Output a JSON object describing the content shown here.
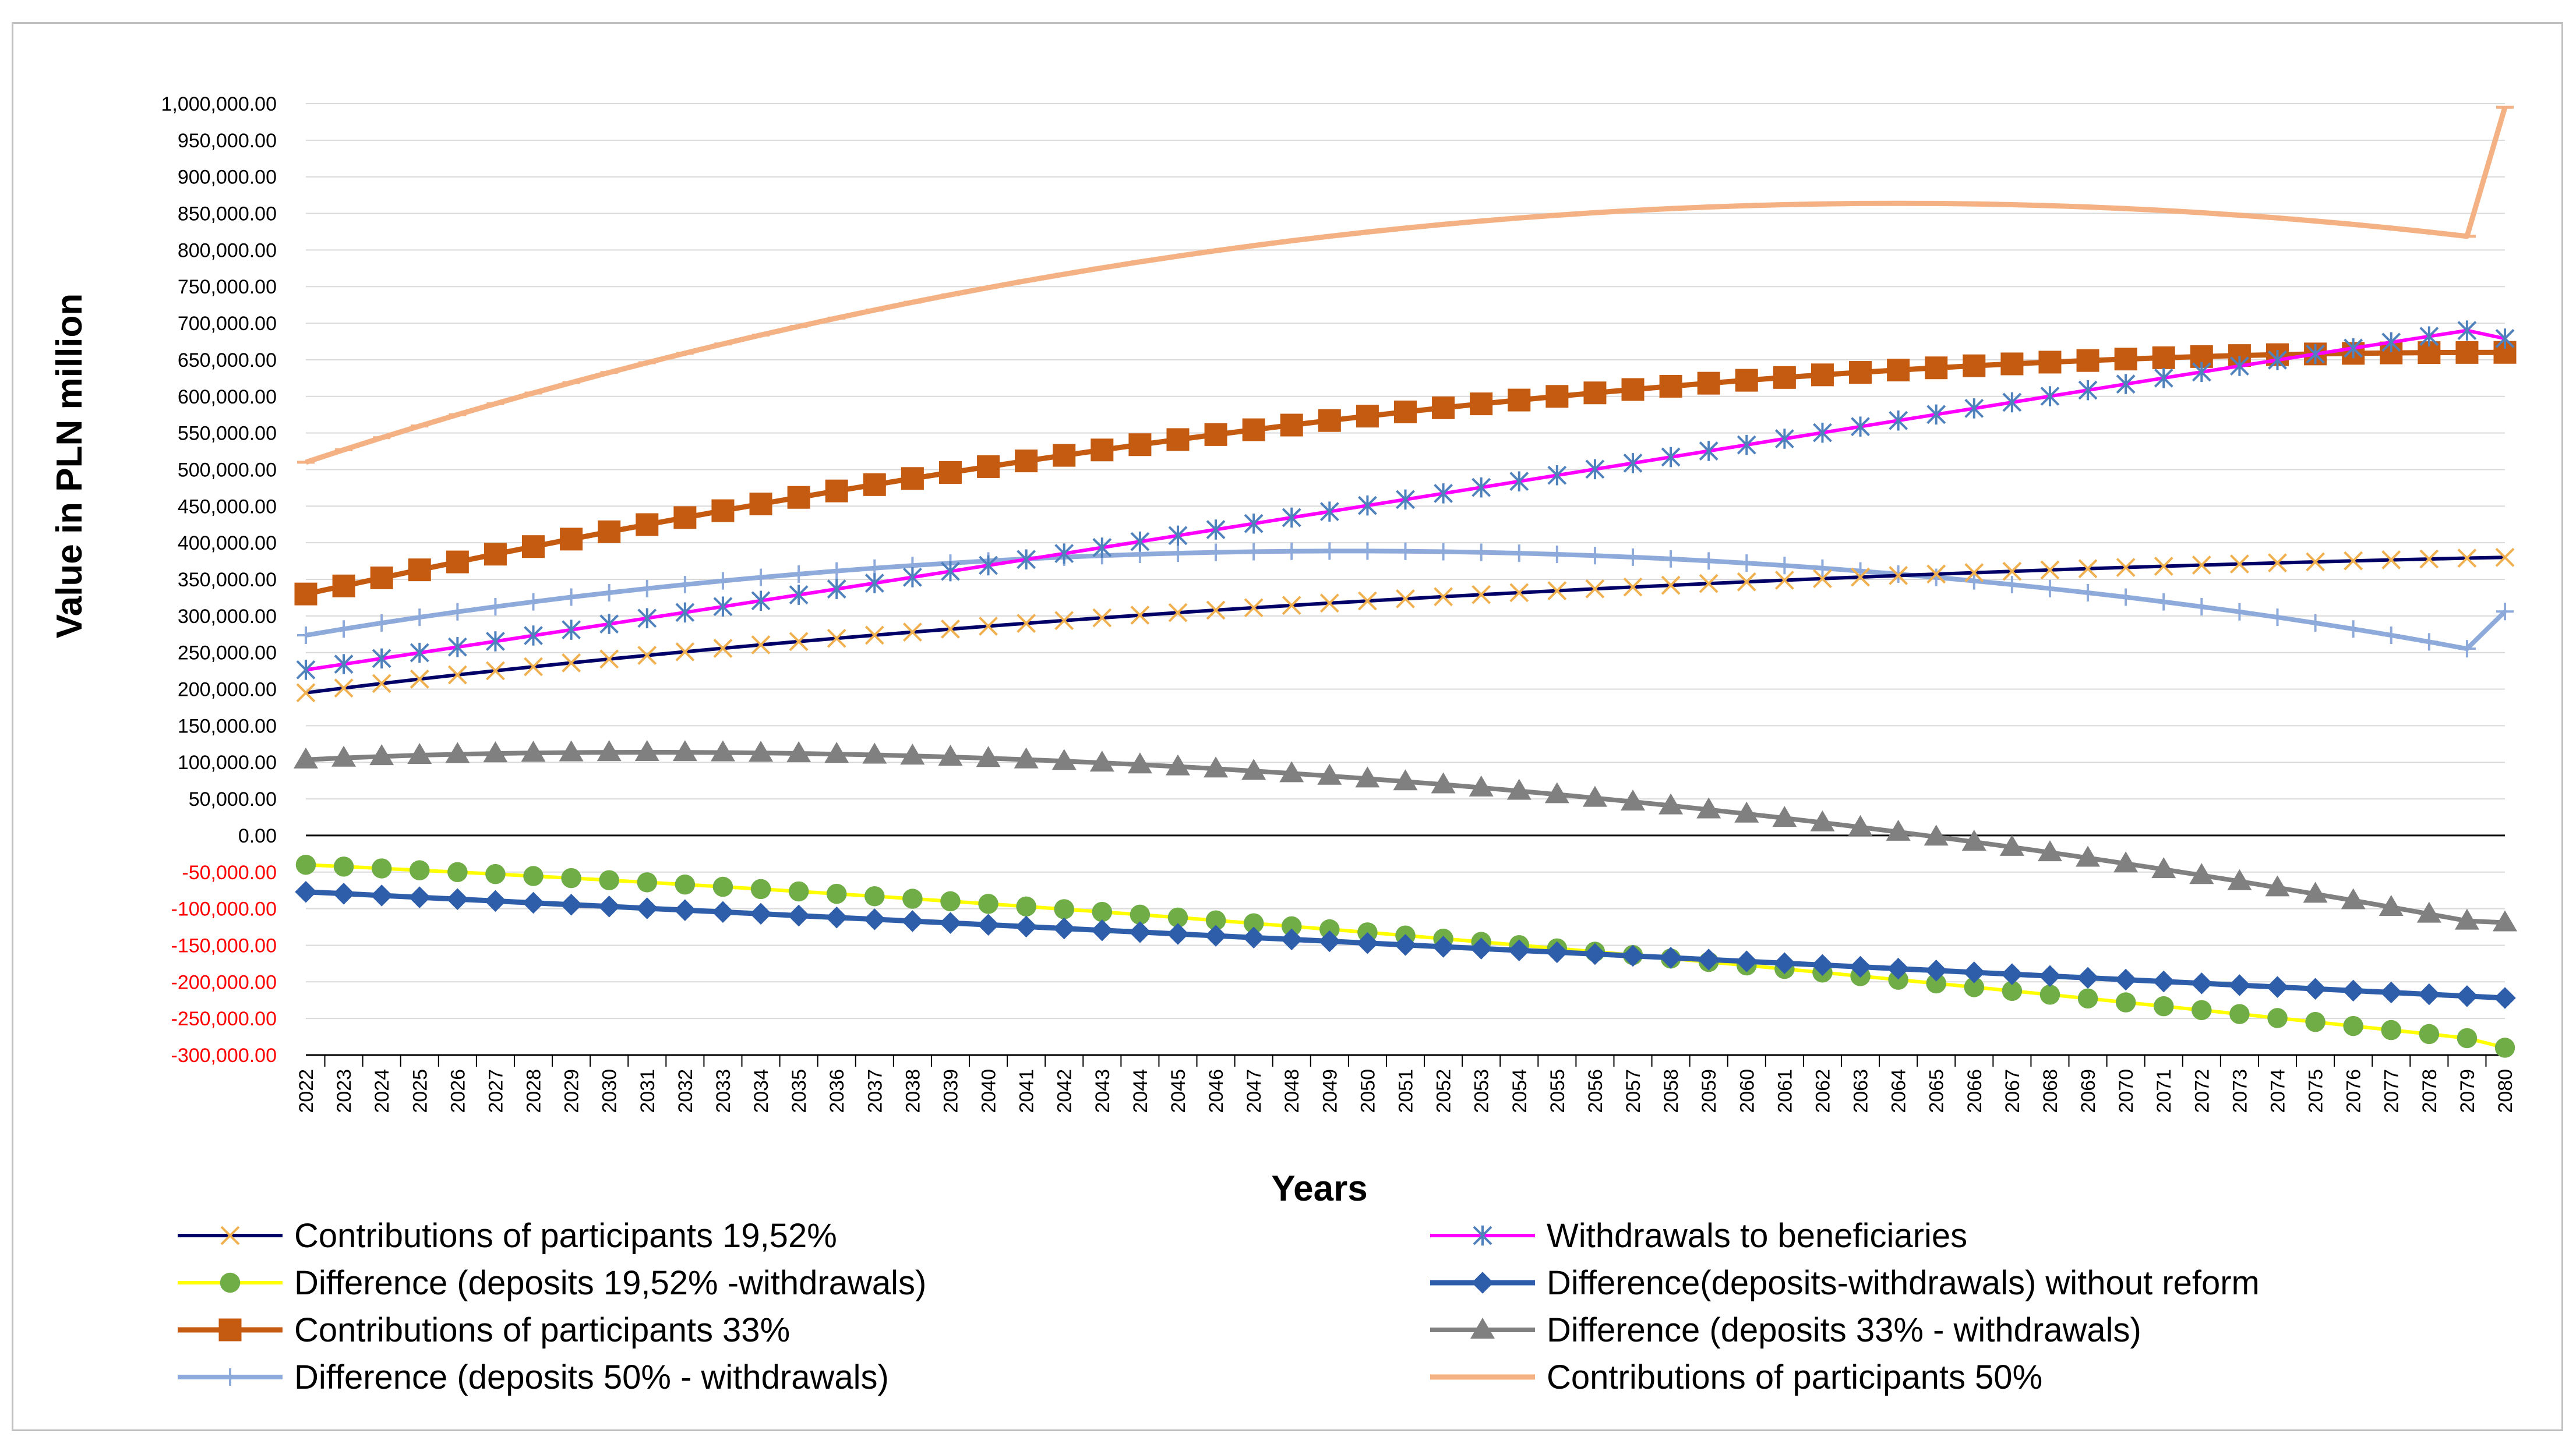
{
  "chart_data": {
    "type": "line",
    "xlabel": "Years",
    "ylabel": "Value in PLN million",
    "x": [
      2022,
      2023,
      2024,
      2025,
      2026,
      2027,
      2028,
      2029,
      2030,
      2031,
      2032,
      2033,
      2034,
      2035,
      2036,
      2037,
      2038,
      2039,
      2040,
      2041,
      2042,
      2043,
      2044,
      2045,
      2046,
      2047,
      2048,
      2049,
      2050,
      2051,
      2052,
      2053,
      2054,
      2055,
      2056,
      2057,
      2058,
      2059,
      2060,
      2061,
      2062,
      2063,
      2064,
      2065,
      2066,
      2067,
      2068,
      2069,
      2070,
      2071,
      2072,
      2073,
      2074,
      2075,
      2076,
      2077,
      2078,
      2079,
      2080
    ],
    "ylim": [
      -300000,
      1000000
    ],
    "yticks": [
      {
        "value": 1000000,
        "label": "1,000,000.00"
      },
      {
        "value": 950000,
        "label": "950,000.00"
      },
      {
        "value": 900000,
        "label": "900,000.00"
      },
      {
        "value": 850000,
        "label": "850,000.00"
      },
      {
        "value": 800000,
        "label": "800,000.00"
      },
      {
        "value": 750000,
        "label": "750,000.00"
      },
      {
        "value": 700000,
        "label": "700,000.00"
      },
      {
        "value": 650000,
        "label": "650,000.00"
      },
      {
        "value": 600000,
        "label": "600,000.00"
      },
      {
        "value": 550000,
        "label": "550,000.00"
      },
      {
        "value": 500000,
        "label": "500,000.00"
      },
      {
        "value": 450000,
        "label": "450,000.00"
      },
      {
        "value": 400000,
        "label": "400,000.00"
      },
      {
        "value": 350000,
        "label": "350,000.00"
      },
      {
        "value": 300000,
        "label": "300,000.00"
      },
      {
        "value": 250000,
        "label": "250,000.00"
      },
      {
        "value": 200000,
        "label": "200,000.00"
      },
      {
        "value": 150000,
        "label": "150,000.00"
      },
      {
        "value": 100000,
        "label": "100,000.00"
      },
      {
        "value": 50000,
        "label": "50,000.00"
      },
      {
        "value": 0,
        "label": "0.00"
      },
      {
        "value": -50000,
        "label": "-50,000.00"
      },
      {
        "value": -100000,
        "label": "-100,000.00"
      },
      {
        "value": -150000,
        "label": "-150,000.00"
      },
      {
        "value": -200000,
        "label": "-200,000.00"
      },
      {
        "value": -250000,
        "label": "-250,000.00"
      },
      {
        "value": -300000,
        "label": "-300,000.00"
      }
    ],
    "negative_tick_color": "#ff0000",
    "grid": "horizontal",
    "legend_position": "bottom",
    "series": [
      {
        "name": "Contributions of participants 19,52%",
        "line_color": "#000066",
        "marker_color": "#f0b050",
        "marker": "x",
        "values": [
          195000,
          201500,
          207700,
          213700,
          219500,
          225100,
          230600,
          235900,
          241100,
          246100,
          251000,
          255800,
          260500,
          265000,
          269400,
          273700,
          277900,
          282000,
          286000,
          289900,
          293700,
          297400,
          301000,
          304500,
          307900,
          311200,
          314400,
          317500,
          320500,
          323400,
          326300,
          329100,
          331800,
          334400,
          337000,
          339500,
          341900,
          344300,
          346600,
          348800,
          351000,
          353100,
          355200,
          357200,
          359100,
          361000,
          362800,
          364600,
          366300,
          367900,
          369500,
          371000,
          372500,
          373900,
          375300,
          376600,
          377800,
          379000,
          380000
        ]
      },
      {
        "name": "Withdrawals to beneficiaries",
        "line_color": "#ff00ff",
        "marker_color": "#4f81bd",
        "marker": "asterisk",
        "values": [
          226400,
          234100,
          241900,
          249700,
          257500,
          265300,
          273200,
          281100,
          289000,
          296900,
          304800,
          312800,
          320800,
          328800,
          336800,
          344800,
          352900,
          361000,
          369100,
          377200,
          385300,
          393400,
          401600,
          409800,
          418000,
          426200,
          434400,
          442600,
          450900,
          459100,
          467400,
          475600,
          483900,
          492200,
          500500,
          508800,
          517100,
          525400,
          533700,
          542100,
          550400,
          558700,
          567000,
          575300,
          583600,
          591900,
          600200,
          608500,
          616800,
          625100,
          633300,
          641500,
          649700,
          657800,
          665900,
          674000,
          682000,
          690000,
          679000
        ]
      },
      {
        "name": "Difference (deposits 19,52% -withdrawals)",
        "line_color": "#ffff00",
        "marker_color": "#70ad47",
        "marker": "circle",
        "values": [
          -40000,
          -42500,
          -45000,
          -47500,
          -50000,
          -52700,
          -55400,
          -58200,
          -61100,
          -64000,
          -67000,
          -70100,
          -73200,
          -76400,
          -79700,
          -83000,
          -86400,
          -89900,
          -93400,
          -97000,
          -100700,
          -104400,
          -108200,
          -112100,
          -116000,
          -120000,
          -124100,
          -128200,
          -132400,
          -136700,
          -141000,
          -145400,
          -149800,
          -154300,
          -158800,
          -163400,
          -168100,
          -172800,
          -177500,
          -182300,
          -187200,
          -192100,
          -197100,
          -202100,
          -207200,
          -212300,
          -217500,
          -222700,
          -228000,
          -233300,
          -238600,
          -244000,
          -249400,
          -254800,
          -260300,
          -265800,
          -271300,
          -276900,
          -290000
        ]
      },
      {
        "name": "Difference(deposits-withdrawals) without reform",
        "line_color": "#2e5eaa",
        "marker_color": "#2e5eaa",
        "marker": "diamond",
        "values": [
          -77000,
          -79500,
          -82000,
          -84500,
          -87000,
          -89500,
          -92000,
          -94500,
          -97000,
          -99500,
          -102000,
          -104500,
          -107000,
          -109500,
          -112000,
          -114500,
          -117000,
          -119500,
          -122000,
          -124500,
          -127000,
          -129500,
          -132000,
          -134500,
          -137000,
          -139500,
          -142000,
          -144500,
          -147000,
          -149500,
          -152000,
          -154500,
          -157000,
          -159500,
          -162000,
          -164500,
          -167000,
          -169500,
          -172000,
          -174500,
          -177000,
          -179500,
          -182000,
          -184500,
          -187000,
          -189500,
          -192000,
          -194500,
          -197000,
          -199500,
          -202000,
          -204500,
          -207000,
          -209500,
          -212000,
          -214500,
          -217000,
          -219500,
          -222000
        ]
      },
      {
        "name": "Contributions of participants 33%",
        "line_color": "#c55a11",
        "marker_color": "#c55a11",
        "marker": "square",
        "values": [
          330000,
          341000,
          352000,
          363000,
          373800,
          384400,
          394800,
          405000,
          415000,
          424800,
          434400,
          443800,
          453000,
          462000,
          470800,
          479400,
          487800,
          496000,
          504000,
          511800,
          519400,
          526800,
          534000,
          541000,
          547800,
          554400,
          560800,
          567000,
          573000,
          578800,
          584400,
          589800,
          595000,
          600000,
          604800,
          609400,
          613800,
          618000,
          622000,
          625800,
          629400,
          632800,
          636000,
          639000,
          641800,
          644400,
          646800,
          649000,
          651000,
          652800,
          654400,
          655800,
          657000,
          658000,
          658800,
          659400,
          659800,
          660000,
          660100
        ]
      },
      {
        "name": "Difference (deposits 33% - withdrawals)",
        "line_color": "#808080",
        "marker_color": "#808080",
        "marker": "triangle",
        "values": [
          103600,
          106000,
          108000,
          109700,
          111000,
          112000,
          112800,
          113300,
          113600,
          113700,
          113600,
          113300,
          112800,
          112100,
          111200,
          110100,
          108800,
          107300,
          105600,
          103700,
          101600,
          99300,
          96800,
          94100,
          91200,
          88100,
          84800,
          81300,
          77600,
          73700,
          69600,
          65300,
          60800,
          56100,
          51200,
          46100,
          40800,
          35300,
          29600,
          23700,
          17600,
          11300,
          4800,
          -1900,
          -8800,
          -15900,
          -23200,
          -30700,
          -38400,
          -46300,
          -54400,
          -62700,
          -71200,
          -79900,
          -88800,
          -97900,
          -107200,
          -116700,
          -119000
        ]
      },
      {
        "name": "Difference (deposits 50% - withdrawals)",
        "line_color": "#8eaadb",
        "marker_color": "#8eaadb",
        "marker": "plus",
        "values": [
          273600,
          282200,
          290400,
          298200,
          305600,
          312600,
          319300,
          325700,
          331700,
          337400,
          342800,
          347900,
          352700,
          357200,
          361400,
          365300,
          368900,
          372200,
          375200,
          377900,
          380300,
          382400,
          384200,
          385700,
          386900,
          387800,
          388400,
          388700,
          388700,
          388400,
          387800,
          386900,
          385700,
          384200,
          382400,
          380300,
          377900,
          375200,
          372200,
          368900,
          365300,
          361400,
          357200,
          352700,
          347900,
          342800,
          337400,
          331700,
          325700,
          319300,
          312600,
          305600,
          298200,
          290400,
          282200,
          273600,
          264600,
          255200,
          306000
        ]
      },
      {
        "name": "Contributions of participants 50%",
        "line_color": "#f4b183",
        "marker_color": "#f4b183",
        "marker": "dash",
        "values": [
          510000,
          527000,
          543500,
          559500,
          575000,
          590000,
          604600,
          618800,
          632600,
          646000,
          659000,
          671600,
          683800,
          695600,
          707000,
          718000,
          728600,
          738800,
          748600,
          758000,
          767000,
          775600,
          783800,
          791600,
          799000,
          806000,
          812600,
          818800,
          824600,
          830000,
          835000,
          839600,
          843800,
          847600,
          851000,
          854000,
          856600,
          858800,
          860600,
          862000,
          863000,
          863600,
          863800,
          863600,
          863000,
          862000,
          860600,
          858800,
          856600,
          854000,
          851000,
          847600,
          843800,
          839600,
          835000,
          830000,
          824600,
          818800,
          995000
        ]
      }
    ]
  }
}
